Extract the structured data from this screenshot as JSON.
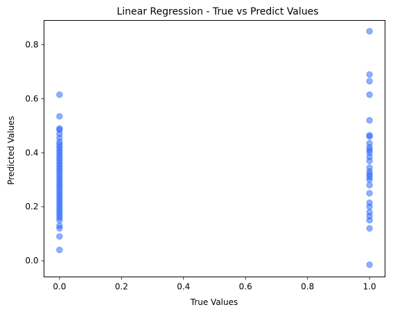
{
  "chart_data": {
    "type": "scatter",
    "title": "Linear Regression - True vs Predict Values",
    "xlabel": "True Values",
    "ylabel": "Predicted Values",
    "xlim": [
      -0.05,
      1.05
    ],
    "ylim": [
      -0.06,
      0.89
    ],
    "xticks": [
      0.0,
      0.2,
      0.4,
      0.6,
      0.8,
      1.0
    ],
    "xtick_labels": [
      "0.0",
      "0.2",
      "0.4",
      "0.6",
      "0.8",
      "1.0"
    ],
    "yticks": [
      0.0,
      0.2,
      0.4,
      0.6,
      0.8
    ],
    "ytick_labels": [
      "0.0",
      "0.2",
      "0.4",
      "0.6",
      "0.8"
    ],
    "grid": false,
    "marker_color": "#1f5fff",
    "marker_alpha": 0.5,
    "points": [
      {
        "x": 0,
        "y": 0.615
      },
      {
        "x": 0,
        "y": 0.535
      },
      {
        "x": 0,
        "y": 0.49
      },
      {
        "x": 0,
        "y": 0.485
      },
      {
        "x": 0,
        "y": 0.47
      },
      {
        "x": 0,
        "y": 0.455
      },
      {
        "x": 0,
        "y": 0.44
      },
      {
        "x": 0,
        "y": 0.43
      },
      {
        "x": 0,
        "y": 0.42
      },
      {
        "x": 0,
        "y": 0.41
      },
      {
        "x": 0,
        "y": 0.4
      },
      {
        "x": 0,
        "y": 0.39
      },
      {
        "x": 0,
        "y": 0.38
      },
      {
        "x": 0,
        "y": 0.37
      },
      {
        "x": 0,
        "y": 0.36
      },
      {
        "x": 0,
        "y": 0.35
      },
      {
        "x": 0,
        "y": 0.34
      },
      {
        "x": 0,
        "y": 0.33
      },
      {
        "x": 0,
        "y": 0.32
      },
      {
        "x": 0,
        "y": 0.31
      },
      {
        "x": 0,
        "y": 0.3
      },
      {
        "x": 0,
        "y": 0.29
      },
      {
        "x": 0,
        "y": 0.28
      },
      {
        "x": 0,
        "y": 0.27
      },
      {
        "x": 0,
        "y": 0.26
      },
      {
        "x": 0,
        "y": 0.25
      },
      {
        "x": 0,
        "y": 0.24
      },
      {
        "x": 0,
        "y": 0.23
      },
      {
        "x": 0,
        "y": 0.22
      },
      {
        "x": 0,
        "y": 0.21
      },
      {
        "x": 0,
        "y": 0.2
      },
      {
        "x": 0,
        "y": 0.19
      },
      {
        "x": 0,
        "y": 0.18
      },
      {
        "x": 0,
        "y": 0.17
      },
      {
        "x": 0,
        "y": 0.16
      },
      {
        "x": 0,
        "y": 0.15
      },
      {
        "x": 0,
        "y": 0.13
      },
      {
        "x": 0,
        "y": 0.12
      },
      {
        "x": 0,
        "y": 0.09
      },
      {
        "x": 0,
        "y": 0.04
      },
      {
        "x": 1,
        "y": 0.85
      },
      {
        "x": 1,
        "y": 0.69
      },
      {
        "x": 1,
        "y": 0.665
      },
      {
        "x": 1,
        "y": 0.615
      },
      {
        "x": 1,
        "y": 0.52
      },
      {
        "x": 1,
        "y": 0.465
      },
      {
        "x": 1,
        "y": 0.46
      },
      {
        "x": 1,
        "y": 0.435
      },
      {
        "x": 1,
        "y": 0.42
      },
      {
        "x": 1,
        "y": 0.41
      },
      {
        "x": 1,
        "y": 0.4
      },
      {
        "x": 1,
        "y": 0.385
      },
      {
        "x": 1,
        "y": 0.37
      },
      {
        "x": 1,
        "y": 0.345
      },
      {
        "x": 1,
        "y": 0.33
      },
      {
        "x": 1,
        "y": 0.32
      },
      {
        "x": 1,
        "y": 0.31
      },
      {
        "x": 1,
        "y": 0.3
      },
      {
        "x": 1,
        "y": 0.28
      },
      {
        "x": 1,
        "y": 0.25
      },
      {
        "x": 1,
        "y": 0.215
      },
      {
        "x": 1,
        "y": 0.2
      },
      {
        "x": 1,
        "y": 0.18
      },
      {
        "x": 1,
        "y": 0.165
      },
      {
        "x": 1,
        "y": 0.15
      },
      {
        "x": 1,
        "y": 0.12
      },
      {
        "x": 1,
        "y": -0.015
      }
    ]
  }
}
